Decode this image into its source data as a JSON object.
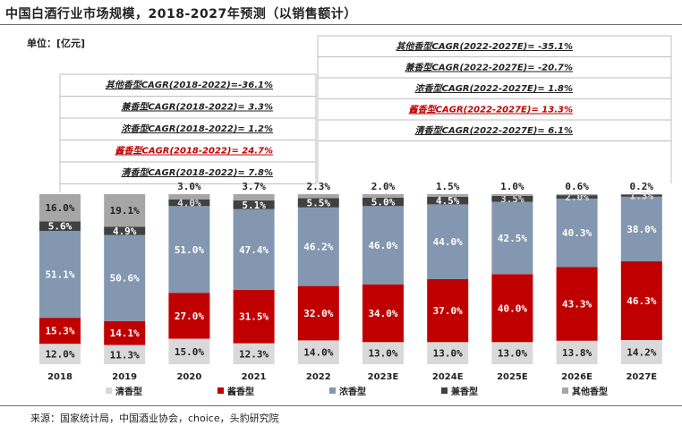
{
  "header": {
    "title": "中国白酒行业市场规模，2018-2027年预测（以销售额计）",
    "unit": "单位：[亿元]",
    "source": "来源：国家统计局，中国酒业协会，choice，头豹研究院"
  },
  "colors": {
    "清香型": "#d9d9d9",
    "酱香型": "#c00000",
    "浓香型": "#8497b0",
    "兼香型": "#404040",
    "其他香型": "#a6a6a6"
  },
  "chart_data": {
    "type": "bar",
    "stacked": true,
    "percent": true,
    "categories": [
      "2018",
      "2019",
      "2020",
      "2021",
      "2022",
      "2023E",
      "2024E",
      "2025E",
      "2026E",
      "2027E"
    ],
    "series": [
      {
        "name": "清香型",
        "values": [
          12.0,
          11.3,
          15.0,
          12.3,
          14.0,
          13.0,
          13.0,
          13.0,
          13.8,
          14.2
        ]
      },
      {
        "name": "酱香型",
        "values": [
          15.3,
          14.1,
          27.0,
          31.5,
          32.0,
          34.0,
          37.0,
          40.0,
          43.3,
          46.3
        ]
      },
      {
        "name": "浓香型",
        "values": [
          51.1,
          50.6,
          51.0,
          47.4,
          46.2,
          46.0,
          44.0,
          42.5,
          40.3,
          38.0
        ]
      },
      {
        "name": "兼香型",
        "values": [
          5.6,
          4.9,
          4.0,
          5.1,
          5.5,
          5.0,
          4.5,
          3.5,
          2.0,
          1.3
        ]
      },
      {
        "name": "其他香型",
        "values": [
          16.0,
          19.1,
          3.0,
          3.7,
          2.3,
          2.0,
          1.5,
          1.0,
          0.6,
          0.2
        ]
      }
    ],
    "data_labels": {
      "清香型": [
        "12.0%",
        "11.3%",
        "15.0%",
        "12.3%",
        "14.0%",
        "13.0%",
        "13.0%",
        "13.0%",
        "13.8%",
        "14.2%"
      ],
      "酱香型": [
        "15.3%",
        "14.1%",
        "27.0%",
        "31.5%",
        "32.0%",
        "34.0%",
        "37.0%",
        "40.0%",
        "43.3%",
        "46.3%"
      ],
      "浓香型": [
        "51.1%",
        "50.6%",
        "51.0%",
        "47.4%",
        "46.2%",
        "46.0%",
        "44.0%",
        "42.5%",
        "40.3%",
        "38.0%"
      ],
      "兼香型": [
        "5.6%",
        "4.9%",
        "4.0%",
        "5.1%",
        "5.5%",
        "5.0%",
        "4.5%",
        "3.5%",
        "2.0%",
        "1.3%"
      ],
      "其他香型": [
        "16.0%",
        "19.1%",
        "3.0%",
        "3.7%",
        "2.3%",
        "2.0%",
        "1.5%",
        "1.0%",
        "0.6%",
        "0.2%"
      ]
    },
    "ylim": [
      0,
      100
    ],
    "legend": "bottom",
    "annotations": {
      "historical": [
        {
          "text": "其他香型CAGR(2018-2022)=-36.1%",
          "highlight": false
        },
        {
          "text": "兼香型CAGR(2018-2022)= 3.3%",
          "highlight": false
        },
        {
          "text": "浓香型CAGR(2018-2022)= 1.2%",
          "highlight": false
        },
        {
          "text": "酱香型CAGR(2018-2022)= 24.7%",
          "highlight": true
        },
        {
          "text": "清香型CAGR(2018-2022)= 7.8%",
          "highlight": false
        }
      ],
      "forecast": [
        {
          "text": "其他香型CAGR(2022-2027E)= -35.1%",
          "highlight": false
        },
        {
          "text": "兼香型CAGR(2022-2027E)= -20.7%",
          "highlight": false
        },
        {
          "text": "浓香型CAGR(2022-2027E)= 1.8%",
          "highlight": false
        },
        {
          "text": "酱香型CAGR(2022-2027E)= 13.3%",
          "highlight": true
        },
        {
          "text": "清香型CAGR(2022-2027E)= 6.1%",
          "highlight": false
        }
      ]
    }
  }
}
